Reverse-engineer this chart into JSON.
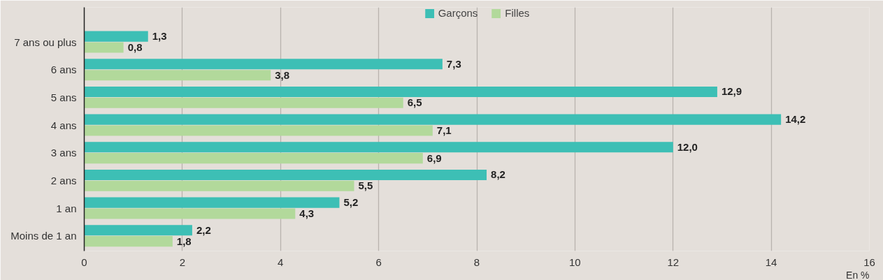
{
  "chart_data": {
    "type": "bar",
    "orientation": "horizontal",
    "categories": [
      "7 ans ou plus",
      "6 ans",
      "5 ans",
      "4 ans",
      "3 ans",
      "2 ans",
      "1 an",
      "Moins de 1 an"
    ],
    "series": [
      {
        "name": "Garçons",
        "color": "#3dbfb5",
        "values": [
          1.3,
          7.3,
          12.9,
          14.2,
          12.0,
          8.2,
          5.2,
          2.2
        ],
        "value_labels": [
          "1,3",
          "7,3",
          "12,9",
          "14,2",
          "12,0",
          "8,2",
          "5,2",
          "2,2"
        ]
      },
      {
        "name": "Filles",
        "color": "#b2d99b",
        "values": [
          0.8,
          3.8,
          6.5,
          7.1,
          6.9,
          5.5,
          4.3,
          1.8
        ],
        "value_labels": [
          "0,8",
          "3,8",
          "6,5",
          "7,1",
          "6,9",
          "5,5",
          "4,3",
          "1,8"
        ]
      }
    ],
    "xlim": [
      0,
      16
    ],
    "xticks": [
      0,
      2,
      4,
      6,
      8,
      10,
      12,
      14,
      16
    ],
    "xlabel": "En %",
    "grid": "x",
    "legend": "top"
  }
}
